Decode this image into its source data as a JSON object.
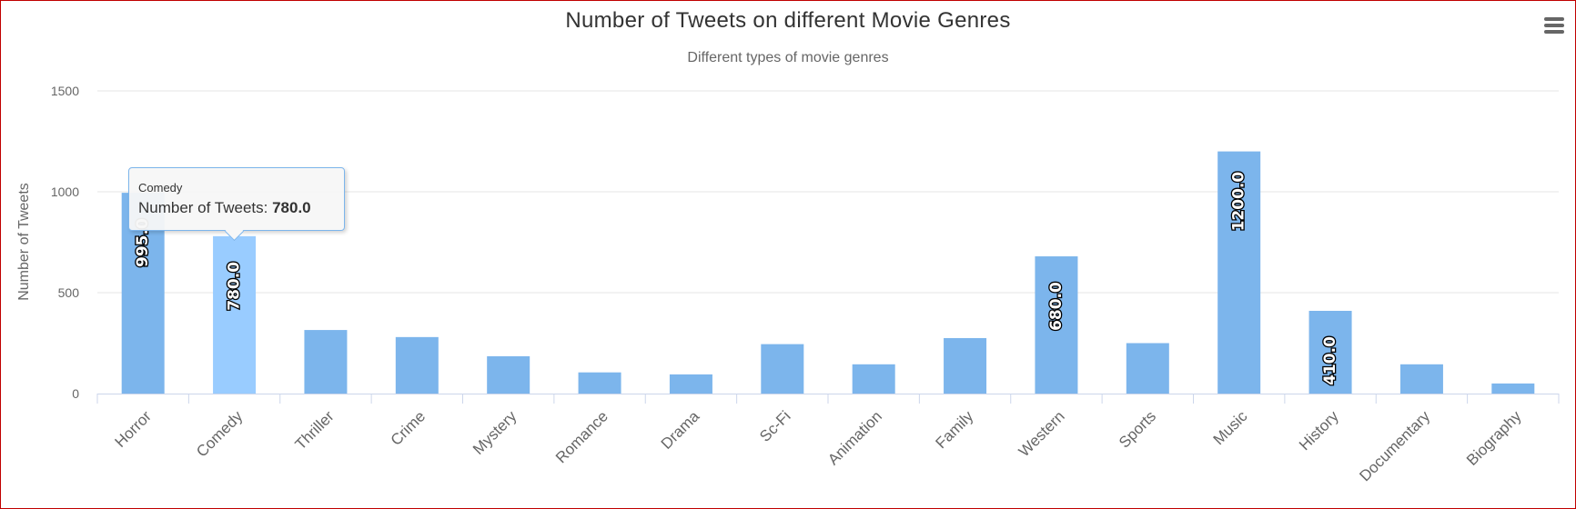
{
  "chart_data": {
    "type": "bar",
    "title": "Number of Tweets on different Movie Genres",
    "subtitle": "Different types of movie genres",
    "xlabel": "",
    "ylabel": "Number of Tweets",
    "ylim": [
      0,
      1500
    ],
    "yticks": [
      "0",
      "500",
      "1000",
      "1500"
    ],
    "grid": true,
    "categories": [
      "Horror",
      "Comedy",
      "Thriller",
      "Crime",
      "Mystery",
      "Romance",
      "Drama",
      "Sc-Fi",
      "Animation",
      "Family",
      "Western",
      "Sports",
      "Music",
      "History",
      "Documentary",
      "Biography"
    ],
    "values": [
      995,
      780,
      315,
      280,
      185,
      105,
      95,
      245,
      145,
      275,
      680,
      250,
      1200,
      410,
      145,
      50
    ],
    "data_labels": [
      "995.0",
      "780.0",
      "",
      "",
      "",
      "",
      "",
      "",
      "",
      "",
      "680.0",
      "",
      "1200.0",
      "410.0",
      "",
      ""
    ],
    "bar_color": "#7cb5ec",
    "highlight_color": "#99ccff",
    "highlighted_category": "Comedy"
  },
  "tooltip": {
    "header": "Comedy",
    "series_label": "Number of Tweets: ",
    "value": "780.0"
  },
  "menu": {
    "icon": "hamburger-menu-icon"
  }
}
